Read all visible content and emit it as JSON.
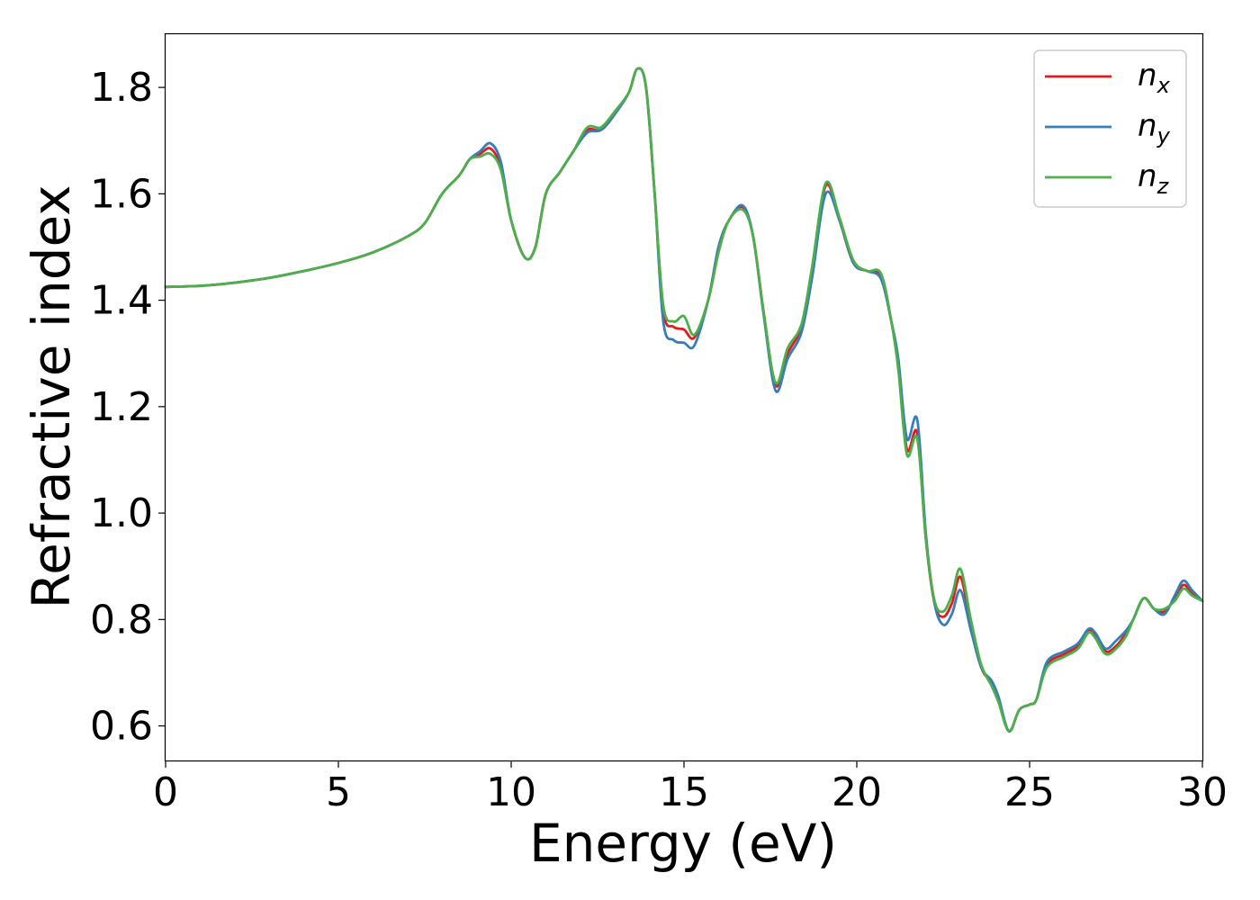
{
  "chart_data": {
    "type": "line",
    "xlabel": "Energy (eV)",
    "ylabel": "Refractive index",
    "xlim": [
      0,
      30
    ],
    "ylim": [
      0.535,
      1.9
    ],
    "xticks": [
      "0",
      "5",
      "10",
      "15",
      "20",
      "25",
      "30"
    ],
    "yticks": [
      "0.6",
      "0.8",
      "1.0",
      "1.2",
      "1.4",
      "1.6",
      "1.8"
    ],
    "grid": false,
    "legend_position": "top-right",
    "series": [
      {
        "name": "n",
        "subscript": "x",
        "color": "#e41a1c",
        "x": [
          0,
          1,
          2,
          3,
          4,
          5,
          6,
          7,
          7.5,
          8,
          8.5,
          8.8,
          9.1,
          9.4,
          9.7,
          10.0,
          10.4,
          10.7,
          11.0,
          11.4,
          11.8,
          12.2,
          12.6,
          13.0,
          13.4,
          13.65,
          13.9,
          14.15,
          14.4,
          14.7,
          15.0,
          15.3,
          15.7,
          16.0,
          16.3,
          16.7,
          17.0,
          17.3,
          17.65,
          18.0,
          18.4,
          18.7,
          19.1,
          19.5,
          19.9,
          20.3,
          20.7,
          21.0,
          21.2,
          21.45,
          21.75,
          22.0,
          22.25,
          22.5,
          22.75,
          23.0,
          23.3,
          23.6,
          23.9,
          24.1,
          24.4,
          24.7,
          25.0,
          25.2,
          25.5,
          26.0,
          26.4,
          26.7,
          26.9,
          27.2,
          27.5,
          27.8,
          28.0,
          28.3,
          28.6,
          28.9,
          29.2,
          29.45,
          29.7,
          30.0
        ],
        "values": [
          1.425,
          1.427,
          1.433,
          1.442,
          1.455,
          1.47,
          1.49,
          1.52,
          1.545,
          1.6,
          1.635,
          1.665,
          1.675,
          1.685,
          1.65,
          1.55,
          1.48,
          1.5,
          1.6,
          1.64,
          1.68,
          1.72,
          1.72,
          1.75,
          1.79,
          1.835,
          1.8,
          1.6,
          1.38,
          1.35,
          1.345,
          1.33,
          1.4,
          1.5,
          1.55,
          1.575,
          1.52,
          1.38,
          1.24,
          1.3,
          1.35,
          1.45,
          1.615,
          1.55,
          1.47,
          1.455,
          1.445,
          1.36,
          1.28,
          1.12,
          1.15,
          0.95,
          0.83,
          0.805,
          0.83,
          0.88,
          0.79,
          0.71,
          0.68,
          0.65,
          0.59,
          0.63,
          0.64,
          0.65,
          0.715,
          0.735,
          0.75,
          0.78,
          0.77,
          0.74,
          0.75,
          0.775,
          0.8,
          0.84,
          0.82,
          0.815,
          0.84,
          0.865,
          0.85,
          0.835
        ]
      },
      {
        "name": "n",
        "subscript": "y",
        "color": "#377eb8",
        "x": [
          0,
          1,
          2,
          3,
          4,
          5,
          6,
          7,
          7.5,
          8,
          8.5,
          8.8,
          9.1,
          9.4,
          9.7,
          10.0,
          10.4,
          10.7,
          11.0,
          11.4,
          11.8,
          12.2,
          12.6,
          13.0,
          13.4,
          13.65,
          13.9,
          14.15,
          14.4,
          14.7,
          15.0,
          15.3,
          15.7,
          16.0,
          16.3,
          16.7,
          17.0,
          17.3,
          17.65,
          18.0,
          18.4,
          18.7,
          19.1,
          19.5,
          19.9,
          20.3,
          20.7,
          21.0,
          21.2,
          21.45,
          21.75,
          22.0,
          22.25,
          22.5,
          22.75,
          23.0,
          23.3,
          23.6,
          23.9,
          24.1,
          24.4,
          24.7,
          25.0,
          25.2,
          25.5,
          26.0,
          26.4,
          26.7,
          26.9,
          27.2,
          27.5,
          27.8,
          28.0,
          28.3,
          28.6,
          28.9,
          29.2,
          29.45,
          29.7,
          30.0
        ],
        "values": [
          1.425,
          1.427,
          1.433,
          1.442,
          1.455,
          1.47,
          1.49,
          1.52,
          1.545,
          1.6,
          1.635,
          1.665,
          1.68,
          1.695,
          1.66,
          1.55,
          1.48,
          1.5,
          1.6,
          1.64,
          1.68,
          1.715,
          1.72,
          1.75,
          1.79,
          1.835,
          1.8,
          1.6,
          1.36,
          1.325,
          1.32,
          1.315,
          1.4,
          1.5,
          1.55,
          1.578,
          1.52,
          1.375,
          1.23,
          1.29,
          1.34,
          1.44,
          1.6,
          1.55,
          1.47,
          1.455,
          1.44,
          1.36,
          1.29,
          1.14,
          1.175,
          0.96,
          0.83,
          0.79,
          0.81,
          0.855,
          0.78,
          0.71,
          0.685,
          0.655,
          0.59,
          0.63,
          0.64,
          0.65,
          0.72,
          0.74,
          0.755,
          0.782,
          0.775,
          0.745,
          0.76,
          0.78,
          0.8,
          0.84,
          0.82,
          0.81,
          0.845,
          0.873,
          0.855,
          0.835
        ]
      },
      {
        "name": "n",
        "subscript": "z",
        "color": "#4daf4a",
        "x": [
          0,
          1,
          2,
          3,
          4,
          5,
          6,
          7,
          7.5,
          8,
          8.5,
          8.8,
          9.1,
          9.4,
          9.7,
          10.0,
          10.4,
          10.7,
          11.0,
          11.4,
          11.8,
          12.2,
          12.6,
          13.0,
          13.4,
          13.65,
          13.9,
          14.15,
          14.4,
          14.7,
          15.0,
          15.3,
          15.7,
          16.0,
          16.3,
          16.7,
          17.0,
          17.3,
          17.65,
          18.0,
          18.4,
          18.7,
          19.1,
          19.5,
          19.9,
          20.3,
          20.7,
          21.0,
          21.2,
          21.45,
          21.75,
          22.0,
          22.25,
          22.5,
          22.75,
          23.0,
          23.3,
          23.6,
          23.9,
          24.1,
          24.4,
          24.7,
          25.0,
          25.2,
          25.5,
          26.0,
          26.4,
          26.7,
          26.9,
          27.2,
          27.5,
          27.8,
          28.0,
          28.3,
          28.6,
          28.9,
          29.2,
          29.45,
          29.7,
          30.0
        ],
        "values": [
          1.425,
          1.427,
          1.433,
          1.442,
          1.455,
          1.47,
          1.49,
          1.52,
          1.545,
          1.6,
          1.635,
          1.665,
          1.67,
          1.675,
          1.645,
          1.55,
          1.48,
          1.5,
          1.6,
          1.64,
          1.68,
          1.725,
          1.725,
          1.755,
          1.79,
          1.835,
          1.8,
          1.6,
          1.39,
          1.36,
          1.37,
          1.335,
          1.4,
          1.49,
          1.55,
          1.57,
          1.52,
          1.38,
          1.245,
          1.31,
          1.355,
          1.46,
          1.62,
          1.555,
          1.475,
          1.455,
          1.45,
          1.36,
          1.27,
          1.11,
          1.14,
          0.95,
          0.835,
          0.815,
          0.845,
          0.895,
          0.8,
          0.715,
          0.675,
          0.645,
          0.59,
          0.63,
          0.64,
          0.65,
          0.71,
          0.73,
          0.745,
          0.775,
          0.765,
          0.735,
          0.745,
          0.77,
          0.8,
          0.84,
          0.82,
          0.82,
          0.835,
          0.858,
          0.845,
          0.835
        ]
      }
    ]
  }
}
